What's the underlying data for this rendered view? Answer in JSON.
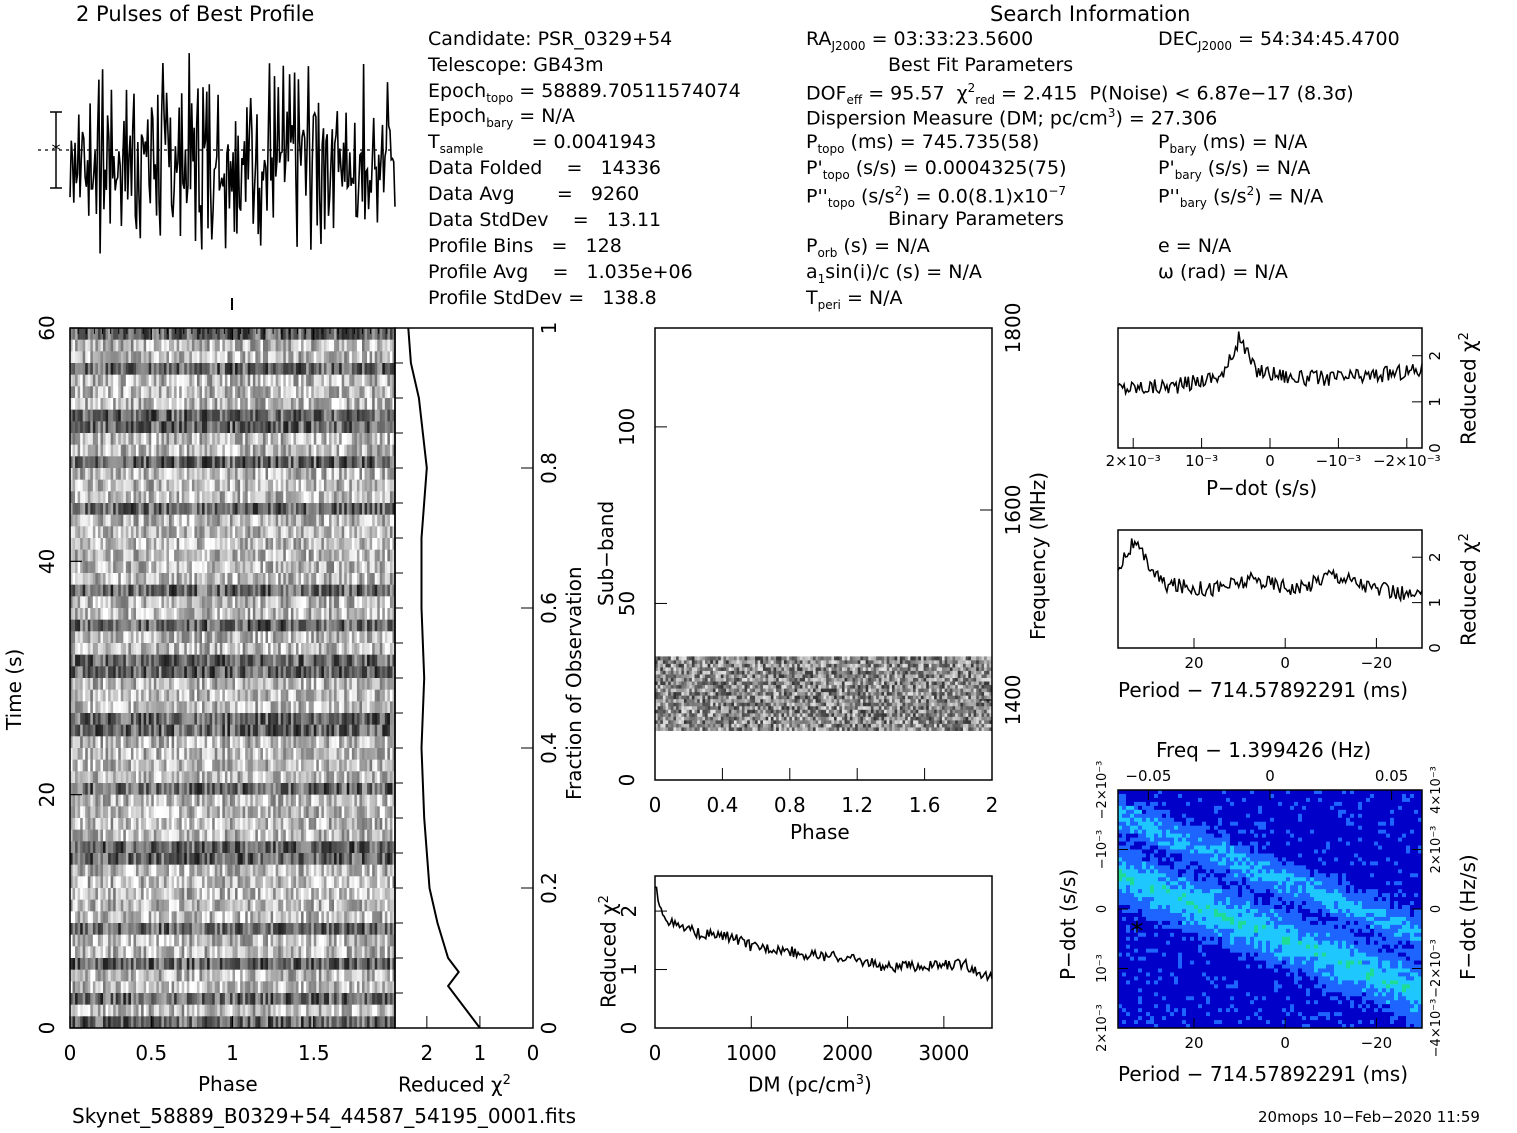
{
  "header": {
    "profile_title": "2 Pulses of Best Profile",
    "search_title": "Search Information",
    "best_fit_title": "Best Fit Parameters",
    "binary_title": "Binary Parameters"
  },
  "info_left": {
    "candidate": "Candidate:  PSR_0329+54",
    "telescope": "Telescope:  GB43m",
    "epoch_topo": "= 58889.70511574074",
    "epoch_bary": "= N/A",
    "t_sample": "=   0.0041943",
    "data_folded": "Data Folded    =   14336",
    "data_avg": "Data Avg       =   9260",
    "data_stddev": "Data StdDev    =   13.11",
    "profile_bins": "Profile Bins   =   128",
    "profile_avg": "Profile Avg    =   1.035e+06",
    "profile_stddev": "Profile StdDev =   138.8"
  },
  "info_mid": {
    "ra": "= 03:33:23.5600",
    "dof": "= 95.57",
    "chi2red": "= 2.415",
    "pnoise": "P(Noise) < 6.87e−17  (8.3σ)",
    "dm": "Dispersion Measure (DM; pc/cm",
    "dm_val": ") = 27.306",
    "p_topo": "(ms) =  745.735(58)",
    "pd_topo": "(s/s) =  0.0004325(75)",
    "pdd_topo": "(s/s",
    "pdd_val": ") = 0.0(8.1)x10",
    "pdd_exp": "−7",
    "p_orb": "(s) = N/A",
    "a1sin": "sin(i)/c (s) = N/A",
    "t_peri": "= N/A"
  },
  "info_right": {
    "dec": "= 54:34:45.4700",
    "p_bary": "(ms) = N/A",
    "pd_bary": "(s/s) = N/A",
    "pdd_bary": "(s/s",
    "pdd_bary_val": ") = N/A",
    "e": "e = N/A",
    "omega": "ω (rad) = N/A"
  },
  "axis_labels": {
    "time": "Time (s)",
    "phase": "Phase",
    "reduced": "Reduced χ",
    "fraction": "Fraction of Observation",
    "subband": "Sub−band",
    "frequency": "Frequency (MHz)",
    "phase2": "Phase",
    "dm_x": "DM (pc/cm",
    "pdot": "P−dot (s/s)",
    "period_off": "Period − 714.57892291 (ms)",
    "freq_off": "Freq − 1.399426 (Hz)",
    "fdot": "F−dot (Hz/s)",
    "period_off2": "Period − 714.57892291 (ms)"
  },
  "footer": {
    "filename": "Skynet_58889_B0329+54_44587_54195_0001.fits",
    "stamp": "20mops 10−Feb−2020 11:59"
  },
  "chart_data": [
    {
      "type": "line",
      "title": "2 Pulses of Best Profile",
      "xlabel": "",
      "ylabel": "",
      "x_range": [
        0,
        2
      ],
      "description_values": "noisy profile over 2 pulses",
      "values": [
        0.2,
        0.6,
        0.9,
        0.4,
        0.7,
        0.3,
        0.8,
        0.5,
        0.1,
        0.6,
        0.95,
        0.4,
        0.2,
        0.7,
        0.5,
        0.3,
        0.8,
        0.6,
        0.2,
        0.4,
        0.9,
        0.5,
        0.3,
        0.7,
        0.1,
        0.6,
        0.8,
        0.4,
        0.5,
        0.2,
        0.7,
        0.9,
        0.3,
        0.6,
        0.4,
        0.8,
        0.2,
        0.5,
        0.7,
        0.3,
        0.6,
        0.1,
        0.9,
        0.4,
        0.5,
        0.7,
        0.2,
        0.8,
        0.6,
        0.3,
        0.5,
        0.9,
        0.4,
        0.2,
        0.7,
        0.6,
        0.3,
        0.8,
        0.5,
        0.4,
        0.2,
        0.7,
        0.9,
        0.3
      ]
    },
    {
      "type": "heatmap",
      "xlabel": "Phase",
      "ylabel": "Time (s)",
      "xticks": [
        "0",
        "0.5",
        "1",
        "1.5"
      ],
      "yticks": [
        "0",
        "20",
        "40",
        "60"
      ],
      "x_range": [
        0,
        2
      ],
      "y_range": [
        0,
        60
      ]
    },
    {
      "type": "line",
      "xlabel": "Reduced χ²",
      "ylabel": "Fraction of Observation",
      "xticks": [
        "2",
        "1",
        "0"
      ],
      "yticks": [
        "0",
        "0.2",
        "0.4",
        "0.6",
        "0.8",
        "1"
      ],
      "points": [
        [
          1.0,
          0.0
        ],
        [
          1.3,
          0.03
        ],
        [
          1.6,
          0.06
        ],
        [
          1.4,
          0.08
        ],
        [
          1.6,
          0.1
        ],
        [
          1.8,
          0.15
        ],
        [
          1.95,
          0.2
        ],
        [
          2.05,
          0.3
        ],
        [
          2.1,
          0.4
        ],
        [
          2.05,
          0.5
        ],
        [
          2.1,
          0.6
        ],
        [
          2.1,
          0.7
        ],
        [
          2.0,
          0.8
        ],
        [
          2.15,
          0.9
        ],
        [
          2.3,
          0.95
        ],
        [
          2.35,
          1.0
        ]
      ]
    },
    {
      "type": "heatmap",
      "xlabel": "Phase",
      "ylabel": "Sub−band",
      "y2label": "Frequency (MHz)",
      "xticks": [
        "0",
        "0.4",
        "0.8",
        "1.2",
        "1.6",
        "2"
      ],
      "yticks": [
        "0",
        "50",
        "100"
      ],
      "y2ticks": [
        "1400",
        "1600",
        "1800"
      ],
      "data_band": [
        14,
        35
      ]
    },
    {
      "type": "line",
      "xlabel": "DM (pc/cm³)",
      "ylabel": "Reduced χ²",
      "xticks": [
        "0",
        "1000",
        "2000",
        "3000"
      ],
      "yticks": [
        "0",
        "1",
        "2"
      ],
      "x_range": [
        0,
        3500
      ],
      "y_range": [
        0,
        2.6
      ],
      "points": [
        [
          0,
          2.4
        ],
        [
          100,
          1.9
        ],
        [
          200,
          1.75
        ],
        [
          500,
          1.6
        ],
        [
          800,
          1.55
        ],
        [
          1000,
          1.4
        ],
        [
          1300,
          1.35
        ],
        [
          1600,
          1.25
        ],
        [
          2000,
          1.2
        ],
        [
          2400,
          1.05
        ],
        [
          2800,
          1.05
        ],
        [
          3200,
          1.1
        ],
        [
          3500,
          0.85
        ]
      ]
    },
    {
      "type": "line",
      "xlabel": "P−dot (s/s)",
      "ylabel": "Reduced χ²",
      "xticks": [
        "2×10⁻³",
        "10⁻³",
        "0",
        "−10⁻³",
        "−2×10⁻³"
      ],
      "yticks": [
        "0",
        "1",
        "2"
      ],
      "y_range": [
        0,
        2.6
      ],
      "points": [
        [
          0,
          1.3
        ],
        [
          0.2,
          1.35
        ],
        [
          0.35,
          1.6
        ],
        [
          0.4,
          2.4
        ],
        [
          0.45,
          1.7
        ],
        [
          0.6,
          1.5
        ],
        [
          0.8,
          1.55
        ],
        [
          1.0,
          1.7
        ]
      ]
    },
    {
      "type": "line",
      "xlabel": "Period − 714.57892291 (ms)",
      "ylabel": "Reduced χ²",
      "xticks": [
        "20",
        "0",
        "−20"
      ],
      "yticks": [
        "0",
        "1",
        "2"
      ],
      "y_range": [
        0,
        2.6
      ],
      "points": [
        [
          0,
          1.8
        ],
        [
          0.05,
          2.3
        ],
        [
          0.15,
          1.4
        ],
        [
          0.3,
          1.3
        ],
        [
          0.45,
          1.5
        ],
        [
          0.6,
          1.3
        ],
        [
          0.7,
          1.65
        ],
        [
          0.85,
          1.3
        ],
        [
          1.0,
          1.1
        ]
      ]
    },
    {
      "type": "heatmap",
      "xlabel": "Period − 714.57892291 (ms)",
      "x2label": "Freq − 1.399426 (Hz)",
      "ylabel": "P−dot (s/s)",
      "y2label": "F−dot (Hz/s)",
      "xticks": [
        "20",
        "0",
        "−20"
      ],
      "x2ticks": [
        "−0.05",
        "0",
        "0.05"
      ],
      "yticks": [
        "2×10⁻³",
        "10⁻³",
        "0",
        "−10⁻³",
        "−2×10⁻³"
      ],
      "y2ticks": [
        "−4×10⁻³",
        "−2×10⁻³",
        "0",
        "2×10⁻³",
        "4×10⁻³"
      ],
      "colors": [
        "#0000c8",
        "#1e64ff",
        "#1ec8ff",
        "#1edc96",
        "#96f01e"
      ]
    }
  ]
}
